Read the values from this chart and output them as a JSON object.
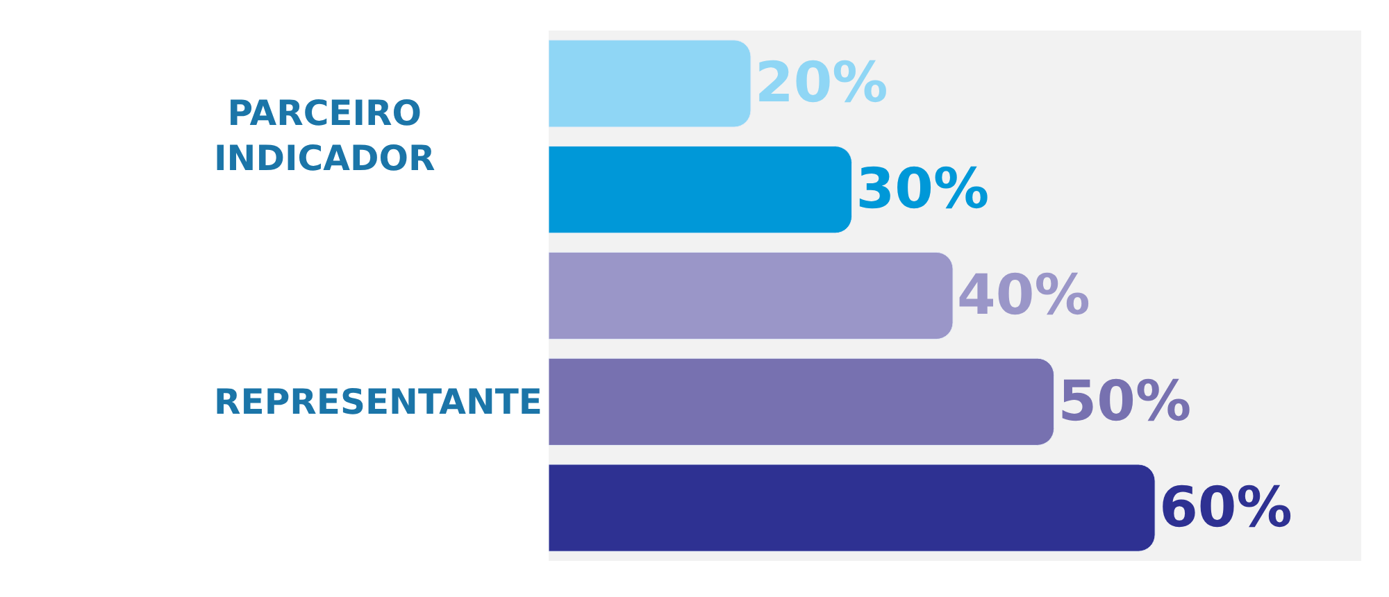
{
  "chart_data": {
    "type": "bar",
    "orientation": "horizontal",
    "categories": [
      null,
      null,
      null,
      null,
      null
    ],
    "values": [
      20,
      30,
      40,
      50,
      60
    ],
    "colors": [
      "#8fd6f5",
      "#0098d8",
      "#9a96c8",
      "#7771b0",
      "#2e3192"
    ],
    "value_labels": [
      "20%",
      "30%",
      "40%",
      "50%",
      "60%"
    ],
    "annotations": [
      "PARCEIRO INDICADOR",
      "REPRESENTANTE"
    ]
  }
}
